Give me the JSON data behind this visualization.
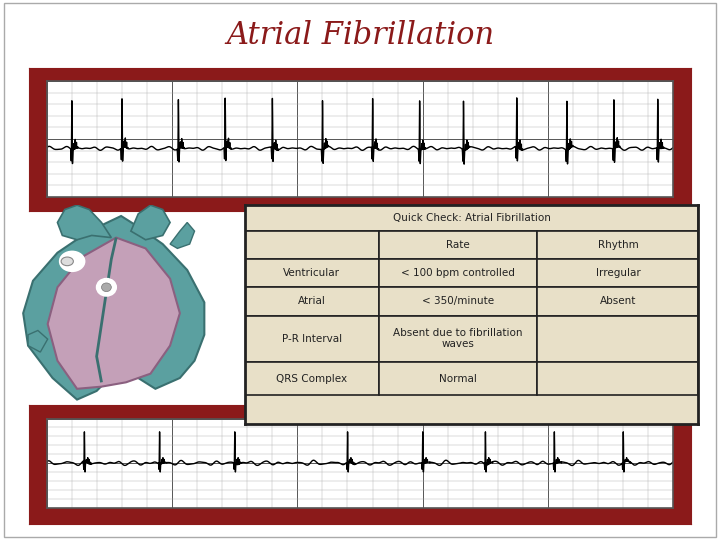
{
  "title": "Atrial Fibrillation",
  "title_color": "#8B1A1A",
  "title_fontsize": 22,
  "bg_color": "#FFFFFF",
  "border_color": "#8B1A1A",
  "border_inner_color": "#555555",
  "table_bg": "#E8E0C8",
  "table_border": "#222222",
  "table_title": "Quick Check: Atrial Fibrillation",
  "table_headers": [
    "",
    "Rate",
    "Rhythm"
  ],
  "table_rows": [
    [
      "Ventricular",
      "< 100 bpm controlled",
      "Irregular"
    ],
    [
      "Atrial",
      "< 350/minute",
      "Absent"
    ],
    [
      "P-R Interval",
      "Absent due to fibrillation\nwaves",
      ""
    ],
    [
      "QRS Complex",
      "Normal",
      ""
    ]
  ],
  "ecg_color": "#000000",
  "ecg_bg": "#FFFFFF",
  "ecg_grid_minor": "#AAAAAA",
  "ecg_grid_major": "#555555",
  "heart_teal": "#5BA0A0",
  "heart_teal_dark": "#3A7070",
  "heart_purple": "#C4A0B8",
  "heart_purple_dark": "#8B6080"
}
